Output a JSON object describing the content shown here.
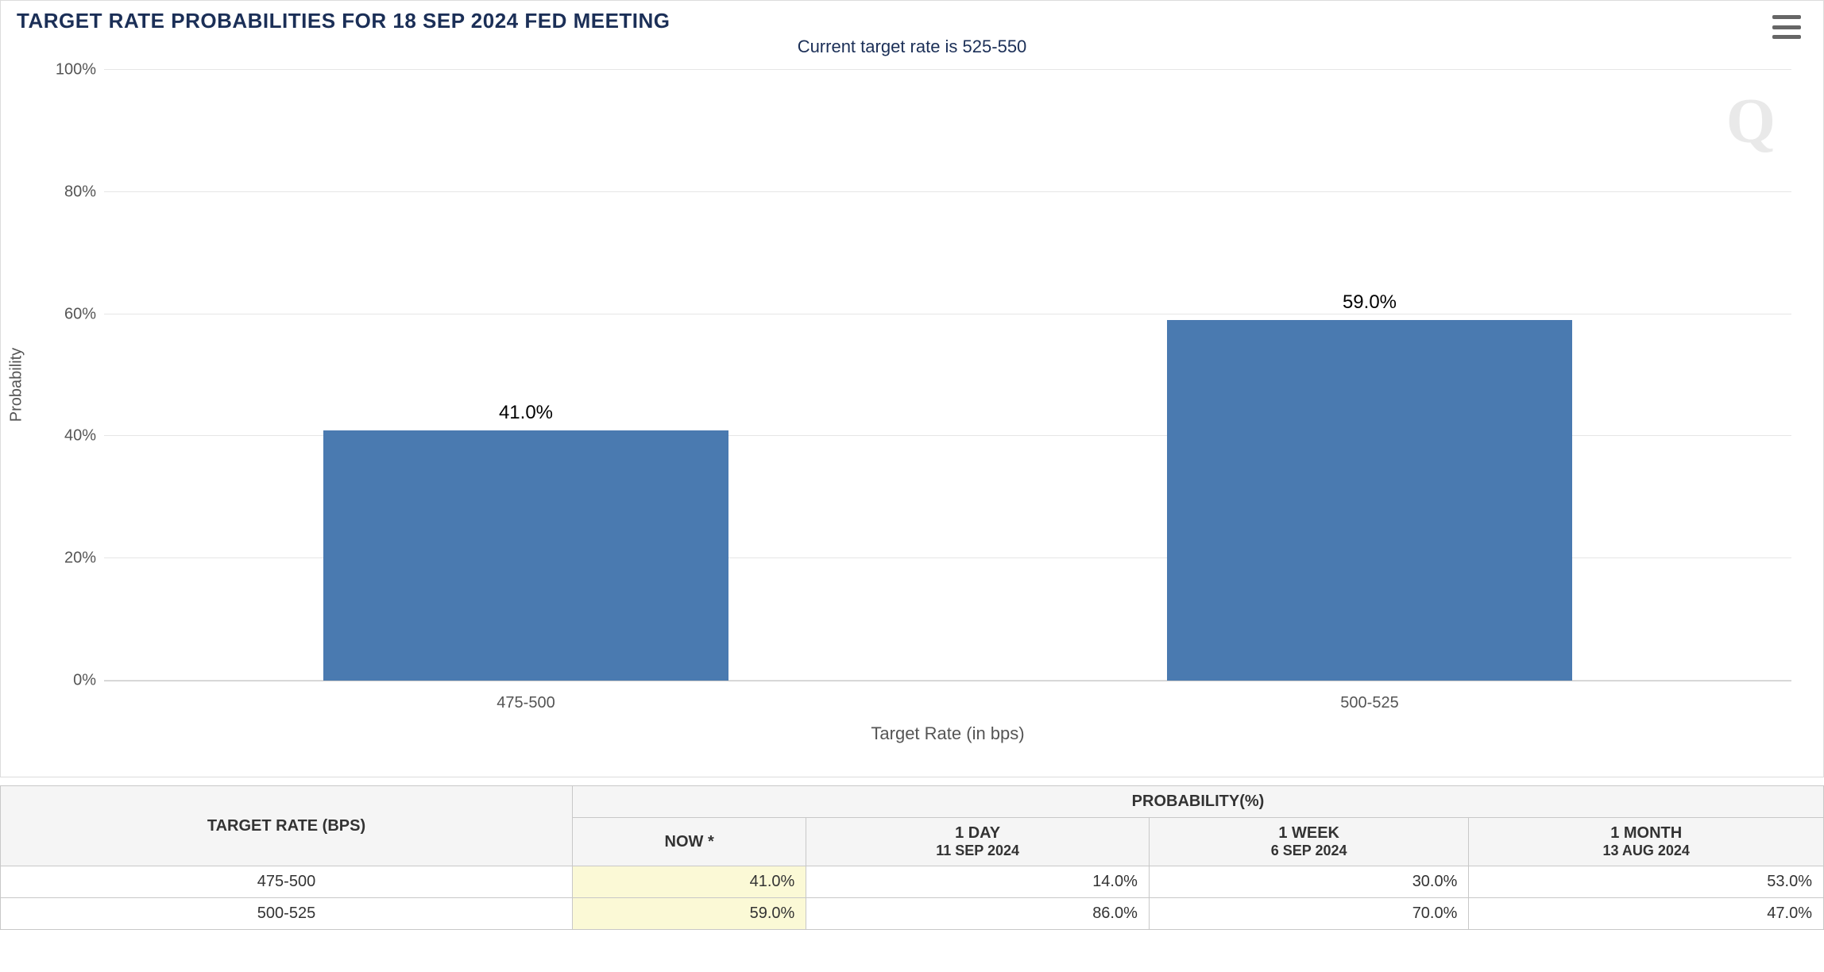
{
  "chart": {
    "title": "TARGET RATE PROBABILITIES FOR 18 SEP 2024 FED MEETING",
    "subtitle": "Current target rate is 525-550",
    "type": "bar",
    "xlabel": "Target Rate (in bps)",
    "ylabel": "Probability",
    "ylim": [
      0,
      100
    ],
    "ytick_step": 20,
    "ytick_suffix": "%",
    "categories": [
      "475-500",
      "500-525"
    ],
    "values": [
      41.0,
      59.0
    ],
    "value_labels": [
      "41.0%",
      "59.0%"
    ],
    "bar_color": "#4a7ab0",
    "grid_color": "#e6e6e6",
    "axis_color": "#c8c8c8",
    "background_color": "#ffffff",
    "bar_width_ratio": 0.24,
    "bar_centers": [
      0.25,
      0.75
    ],
    "title_color": "#1b2f57",
    "title_fontsize": 26,
    "subtitle_fontsize": 22,
    "label_fontsize": 20,
    "watermark": "Q"
  },
  "table": {
    "target_header": "TARGET RATE (BPS)",
    "prob_header": "PROBABILITY(%)",
    "columns": [
      {
        "top": "NOW *",
        "sub": "",
        "highlight": true
      },
      {
        "top": "1 DAY",
        "sub": "11 SEP 2024",
        "highlight": false
      },
      {
        "top": "1 WEEK",
        "sub": "6 SEP 2024",
        "highlight": false
      },
      {
        "top": "1 MONTH",
        "sub": "13 AUG 2024",
        "highlight": false
      }
    ],
    "rows": [
      {
        "label": "475-500",
        "cells": [
          "41.0%",
          "14.0%",
          "30.0%",
          "53.0%"
        ]
      },
      {
        "label": "500-525",
        "cells": [
          "59.0%",
          "86.0%",
          "70.0%",
          "47.0%"
        ]
      }
    ]
  }
}
